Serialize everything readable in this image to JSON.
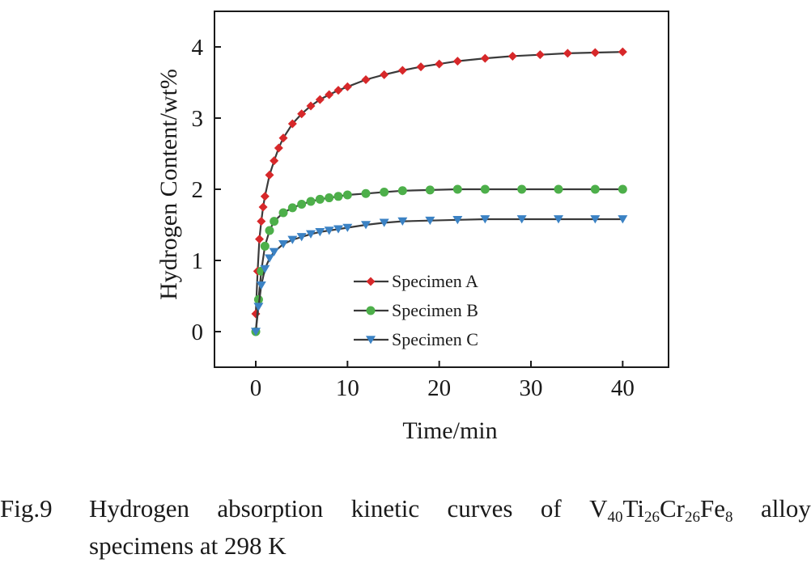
{
  "chart_data": {
    "type": "line",
    "xlabel": "Time/min",
    "ylabel": "Hydrogen Content/wt%",
    "xlim": [
      -4.5,
      45
    ],
    "ylim": [
      -0.5,
      4.5
    ],
    "xticks": [
      0,
      10,
      20,
      30,
      40
    ],
    "yticks": [
      0,
      1,
      2,
      3,
      4
    ],
    "grid": false,
    "legend_position": "lower-center",
    "series": [
      {
        "name": "Specimen A",
        "color": "#d7282a",
        "marker": "diamond",
        "x": [
          0,
          0.2,
          0.4,
          0.6,
          0.8,
          1.0,
          1.5,
          2,
          2.5,
          3,
          4,
          5,
          6,
          7,
          8,
          9,
          10,
          12,
          14,
          16,
          18,
          20,
          22,
          25,
          28,
          31,
          34,
          37,
          40
        ],
        "y": [
          0.25,
          0.85,
          1.3,
          1.55,
          1.75,
          1.9,
          2.2,
          2.4,
          2.58,
          2.72,
          2.92,
          3.06,
          3.17,
          3.26,
          3.33,
          3.39,
          3.44,
          3.54,
          3.61,
          3.67,
          3.72,
          3.76,
          3.8,
          3.84,
          3.87,
          3.89,
          3.91,
          3.92,
          3.93
        ]
      },
      {
        "name": "Specimen B",
        "color": "#4daf4a",
        "marker": "circle",
        "x": [
          0,
          0.3,
          0.6,
          1.0,
          1.5,
          2,
          3,
          4,
          5,
          6,
          7,
          8,
          9,
          10,
          12,
          14,
          16,
          19,
          22,
          25,
          29,
          33,
          37,
          40
        ],
        "y": [
          0.0,
          0.45,
          0.85,
          1.2,
          1.42,
          1.55,
          1.67,
          1.74,
          1.79,
          1.83,
          1.86,
          1.88,
          1.9,
          1.92,
          1.94,
          1.96,
          1.98,
          1.99,
          2.0,
          2.0,
          2.0,
          2.0,
          2.0,
          2.0
        ]
      },
      {
        "name": "Specimen C",
        "color": "#3b82c4",
        "marker": "triangle-down",
        "x": [
          0,
          0.3,
          0.6,
          1.0,
          1.5,
          2,
          3,
          4,
          5,
          6,
          7,
          8,
          9,
          10,
          12,
          14,
          16,
          19,
          22,
          25,
          29,
          33,
          37,
          40
        ],
        "y": [
          0.0,
          0.35,
          0.65,
          0.88,
          1.03,
          1.12,
          1.23,
          1.29,
          1.33,
          1.37,
          1.4,
          1.42,
          1.44,
          1.46,
          1.5,
          1.53,
          1.55,
          1.56,
          1.57,
          1.58,
          1.58,
          1.58,
          1.58,
          1.58
        ]
      }
    ],
    "line_color": "#3a3a3a"
  },
  "caption": {
    "label": "Fig.9",
    "words_before": [
      "Hydrogen",
      "absorption",
      "kinetic",
      "curves",
      "of"
    ],
    "formula": [
      {
        "el": "V",
        "sub": "40"
      },
      {
        "el": "Ti",
        "sub": "26"
      },
      {
        "el": "Cr",
        "sub": "26"
      },
      {
        "el": "Fe",
        "sub": "8"
      }
    ],
    "word_after": "alloy",
    "line2": "specimens at 298 K"
  }
}
